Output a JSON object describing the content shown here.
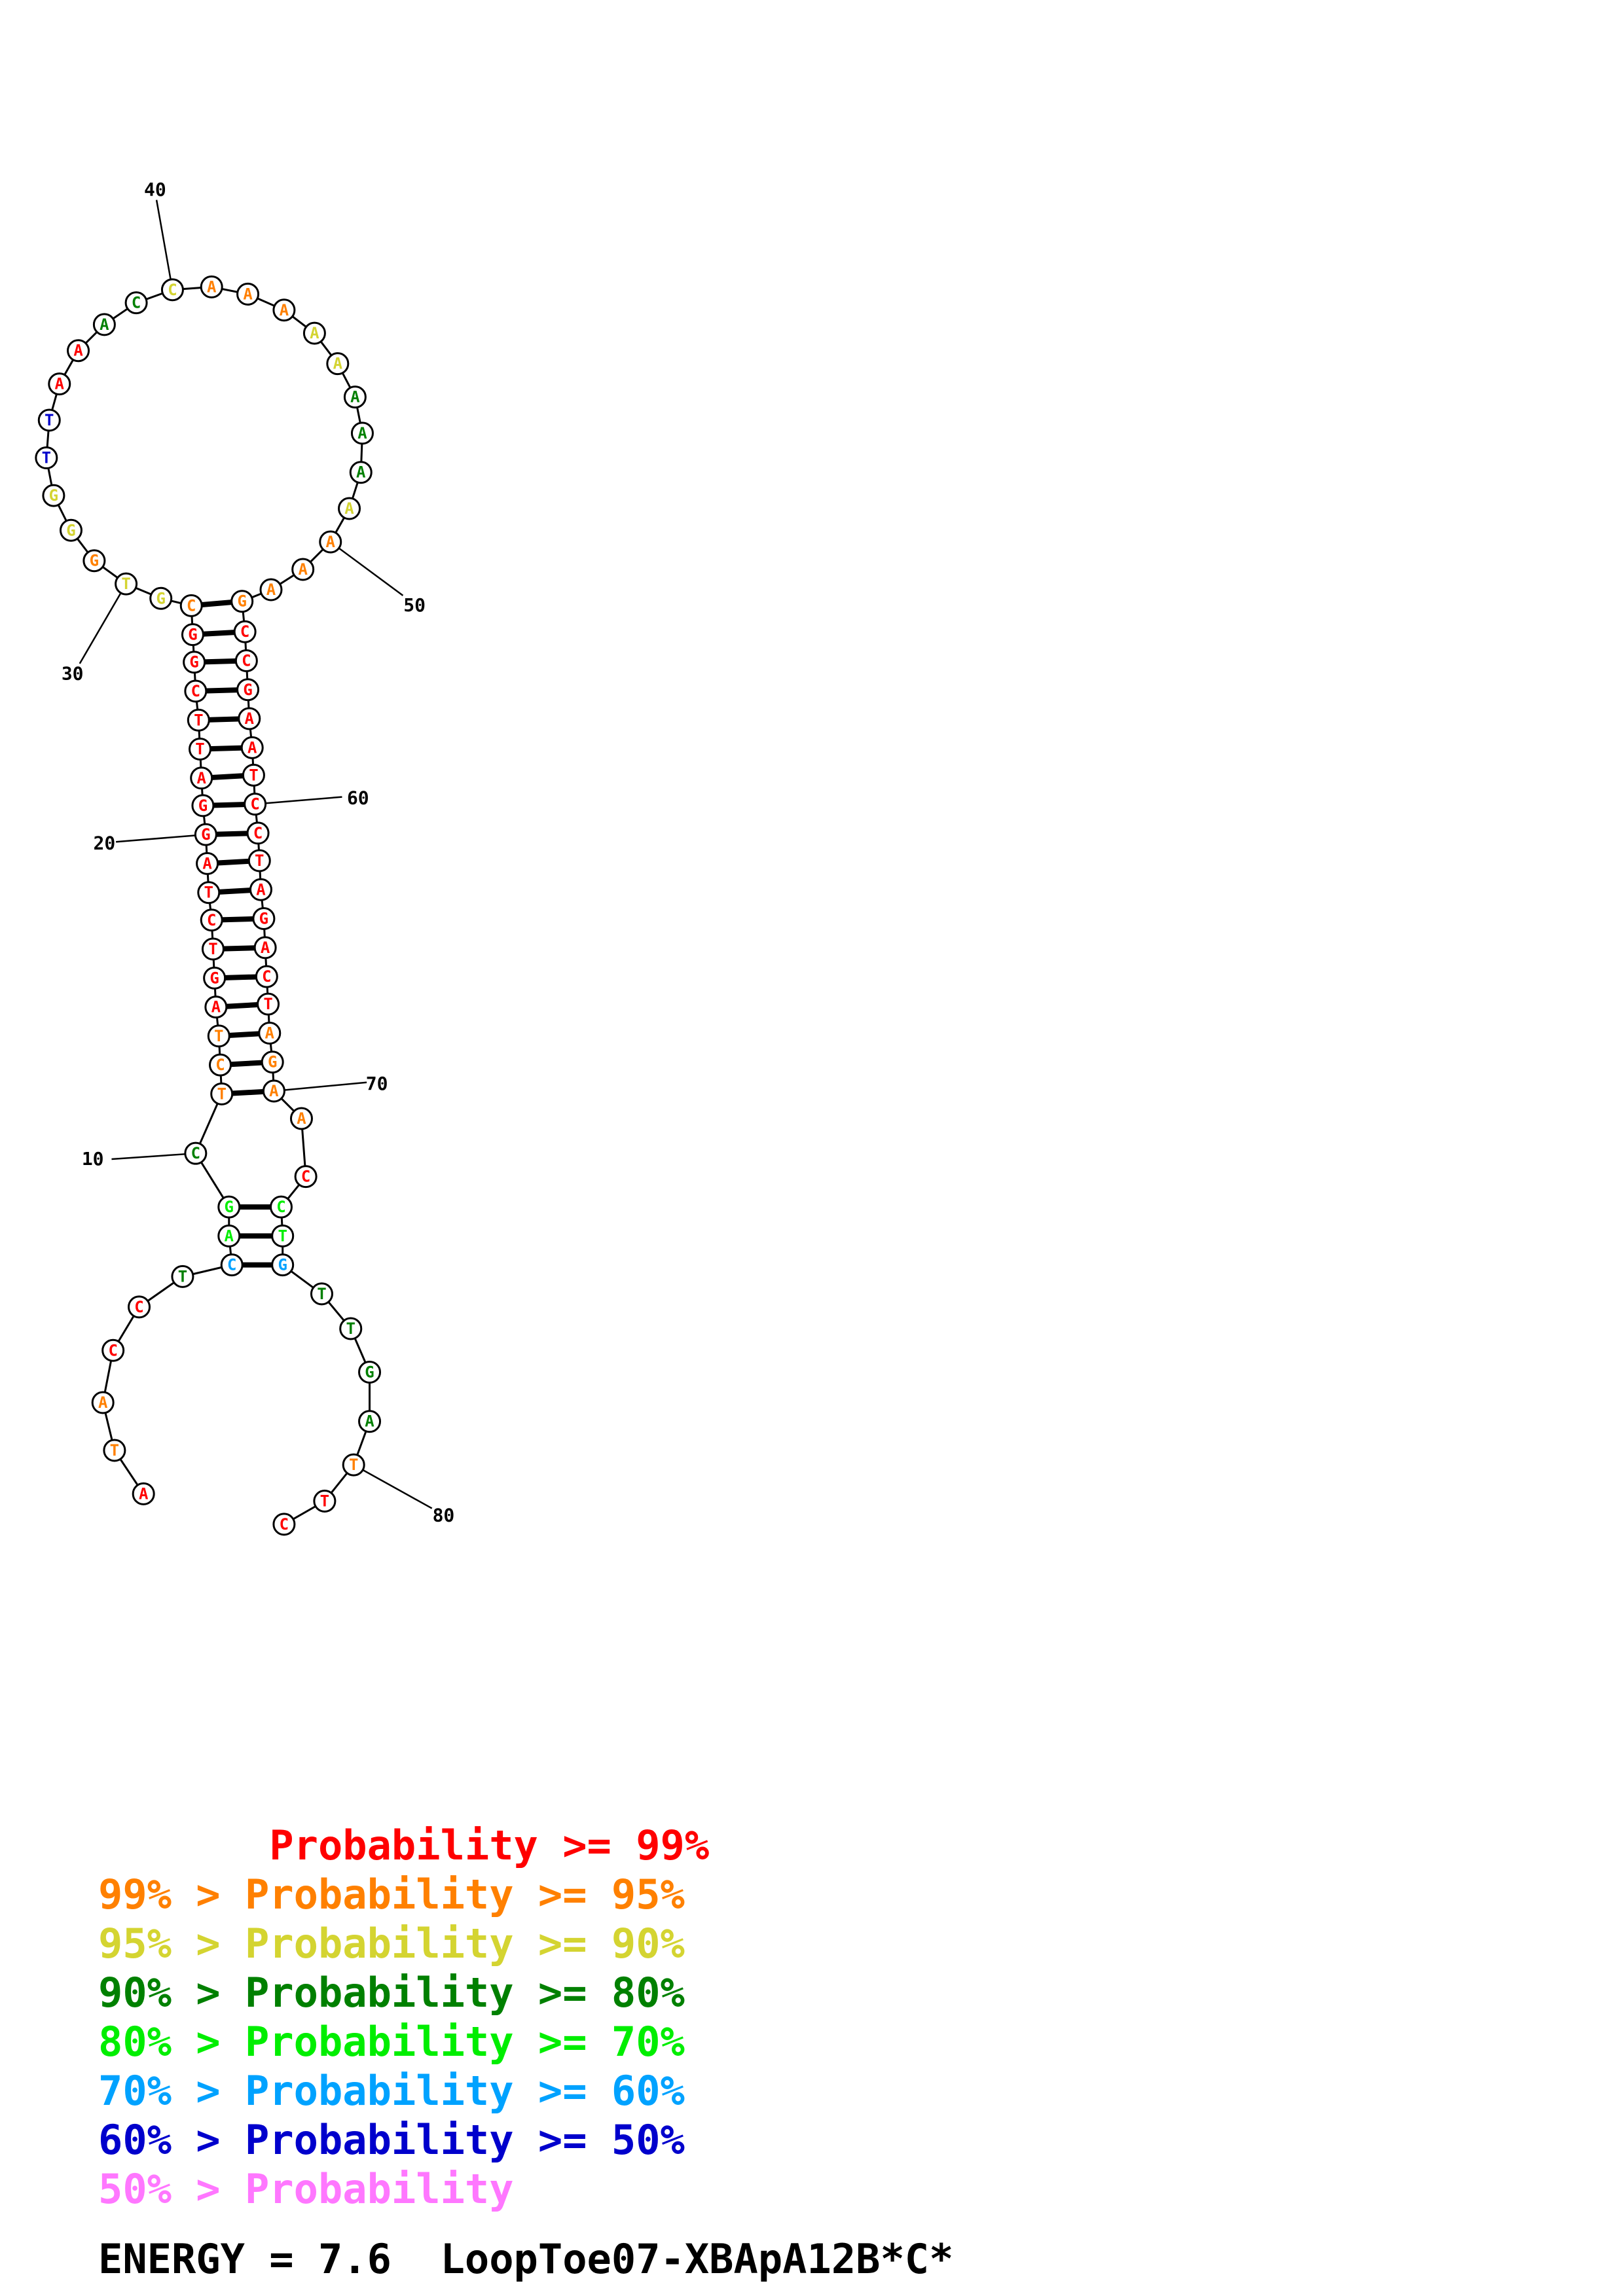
{
  "colors": {
    "p99": "#ff0000",
    "p95": "#ff8000",
    "p90": "#d4d431",
    "p80": "#008000",
    "p70": "#00ee00",
    "p60": "#00a2ff",
    "p50": "#0000cc",
    "p0": "#ff77ff"
  },
  "structure": {
    "nucleotides": [
      {
        "n": 1,
        "b": "A",
        "c": "p99"
      },
      {
        "n": 2,
        "b": "T",
        "c": "p95"
      },
      {
        "n": 3,
        "b": "A",
        "c": "p95"
      },
      {
        "n": 4,
        "b": "C",
        "c": "p99"
      },
      {
        "n": 5,
        "b": "C",
        "c": "p99"
      },
      {
        "n": 6,
        "b": "T",
        "c": "p80"
      },
      {
        "n": 7,
        "b": "C",
        "c": "p60"
      },
      {
        "n": 8,
        "b": "A",
        "c": "p70"
      },
      {
        "n": 9,
        "b": "G",
        "c": "p70"
      },
      {
        "n": 10,
        "b": "C",
        "c": "p80"
      },
      {
        "n": 11,
        "b": "T",
        "c": "p95"
      },
      {
        "n": 12,
        "b": "C",
        "c": "p95"
      },
      {
        "n": 13,
        "b": "T",
        "c": "p95"
      },
      {
        "n": 14,
        "b": "A",
        "c": "p99"
      },
      {
        "n": 15,
        "b": "G",
        "c": "p99"
      },
      {
        "n": 16,
        "b": "T",
        "c": "p99"
      },
      {
        "n": 17,
        "b": "C",
        "c": "p99"
      },
      {
        "n": 18,
        "b": "T",
        "c": "p99"
      },
      {
        "n": 19,
        "b": "A",
        "c": "p99"
      },
      {
        "n": 20,
        "b": "G",
        "c": "p99"
      },
      {
        "n": 21,
        "b": "G",
        "c": "p99"
      },
      {
        "n": 22,
        "b": "A",
        "c": "p99"
      },
      {
        "n": 23,
        "b": "T",
        "c": "p99"
      },
      {
        "n": 24,
        "b": "T",
        "c": "p99"
      },
      {
        "n": 25,
        "b": "C",
        "c": "p99"
      },
      {
        "n": 26,
        "b": "G",
        "c": "p99"
      },
      {
        "n": 27,
        "b": "G",
        "c": "p99"
      },
      {
        "n": 28,
        "b": "C",
        "c": "p95"
      },
      {
        "n": 29,
        "b": "G",
        "c": "p90"
      },
      {
        "n": 30,
        "b": "T",
        "c": "p90"
      },
      {
        "n": 31,
        "b": "G",
        "c": "p95"
      },
      {
        "n": 32,
        "b": "G",
        "c": "p90"
      },
      {
        "n": 33,
        "b": "G",
        "c": "p90"
      },
      {
        "n": 34,
        "b": "T",
        "c": "p50"
      },
      {
        "n": 35,
        "b": "T",
        "c": "p50"
      },
      {
        "n": 36,
        "b": "A",
        "c": "p99"
      },
      {
        "n": 37,
        "b": "A",
        "c": "p99"
      },
      {
        "n": 38,
        "b": "A",
        "c": "p80"
      },
      {
        "n": 39,
        "b": "C",
        "c": "p80"
      },
      {
        "n": 40,
        "b": "C",
        "c": "p90"
      },
      {
        "n": 41,
        "b": "A",
        "c": "p95"
      },
      {
        "n": 42,
        "b": "A",
        "c": "p95"
      },
      {
        "n": 43,
        "b": "A",
        "c": "p95"
      },
      {
        "n": 44,
        "b": "A",
        "c": "p90"
      },
      {
        "n": 45,
        "b": "A",
        "c": "p90"
      },
      {
        "n": 46,
        "b": "A",
        "c": "p80"
      },
      {
        "n": 47,
        "b": "A",
        "c": "p80"
      },
      {
        "n": 48,
        "b": "A",
        "c": "p80"
      },
      {
        "n": 49,
        "b": "A",
        "c": "p90"
      },
      {
        "n": 50,
        "b": "A",
        "c": "p95"
      },
      {
        "n": 51,
        "b": "A",
        "c": "p95"
      },
      {
        "n": 52,
        "b": "A",
        "c": "p95"
      },
      {
        "n": 53,
        "b": "G",
        "c": "p95"
      },
      {
        "n": 54,
        "b": "C",
        "c": "p99"
      },
      {
        "n": 55,
        "b": "C",
        "c": "p99"
      },
      {
        "n": 56,
        "b": "G",
        "c": "p99"
      },
      {
        "n": 57,
        "b": "A",
        "c": "p99"
      },
      {
        "n": 58,
        "b": "A",
        "c": "p99"
      },
      {
        "n": 59,
        "b": "T",
        "c": "p99"
      },
      {
        "n": 60,
        "b": "C",
        "c": "p99"
      },
      {
        "n": 61,
        "b": "C",
        "c": "p99"
      },
      {
        "n": 62,
        "b": "T",
        "c": "p99"
      },
      {
        "n": 63,
        "b": "A",
        "c": "p99"
      },
      {
        "n": 64,
        "b": "G",
        "c": "p99"
      },
      {
        "n": 65,
        "b": "A",
        "c": "p99"
      },
      {
        "n": 66,
        "b": "C",
        "c": "p99"
      },
      {
        "n": 67,
        "b": "T",
        "c": "p99"
      },
      {
        "n": 68,
        "b": "A",
        "c": "p95"
      },
      {
        "n": 69,
        "b": "G",
        "c": "p95"
      },
      {
        "n": 70,
        "b": "A",
        "c": "p95"
      },
      {
        "n": 71,
        "b": "A",
        "c": "p95"
      },
      {
        "n": 72,
        "b": "C",
        "c": "p99"
      },
      {
        "n": 73,
        "b": "C",
        "c": "p70"
      },
      {
        "n": 74,
        "b": "T",
        "c": "p70"
      },
      {
        "n": 75,
        "b": "G",
        "c": "p60"
      },
      {
        "n": 76,
        "b": "T",
        "c": "p80"
      },
      {
        "n": 77,
        "b": "T",
        "c": "p80"
      },
      {
        "n": 78,
        "b": "G",
        "c": "p80"
      },
      {
        "n": 79,
        "b": "A",
        "c": "p80"
      },
      {
        "n": 80,
        "b": "T",
        "c": "p95"
      },
      {
        "n": 81,
        "b": "T",
        "c": "p99"
      },
      {
        "n": 82,
        "b": "C",
        "c": "p99"
      }
    ],
    "pairs": [
      [
        7,
        75
      ],
      [
        8,
        74
      ],
      [
        9,
        73
      ],
      [
        11,
        70
      ],
      [
        12,
        69
      ],
      [
        13,
        68
      ],
      [
        14,
        67
      ],
      [
        15,
        66
      ],
      [
        16,
        65
      ],
      [
        17,
        64
      ],
      [
        18,
        63
      ],
      [
        19,
        62
      ],
      [
        20,
        61
      ],
      [
        21,
        60
      ],
      [
        22,
        59
      ],
      [
        23,
        58
      ],
      [
        24,
        57
      ],
      [
        25,
        56
      ],
      [
        26,
        55
      ],
      [
        27,
        54
      ],
      [
        28,
        53
      ]
    ],
    "position_labels": [
      {
        "n": 10,
        "text": "10"
      },
      {
        "n": 20,
        "text": "20"
      },
      {
        "n": 30,
        "text": "30"
      },
      {
        "n": 40,
        "text": "40"
      },
      {
        "n": 50,
        "text": "50"
      },
      {
        "n": 60,
        "text": "60"
      },
      {
        "n": 70,
        "text": "70"
      },
      {
        "n": 80,
        "text": "80"
      }
    ]
  },
  "legend": [
    {
      "text": "       Probability >= 99%",
      "color": "p99"
    },
    {
      "text": "99% > Probability >= 95%",
      "color": "p95"
    },
    {
      "text": "95% > Probability >= 90%",
      "color": "p90"
    },
    {
      "text": "90% > Probability >= 80%",
      "color": "p80"
    },
    {
      "text": "80% > Probability >= 70%",
      "color": "p70"
    },
    {
      "text": "70% > Probability >= 60%",
      "color": "p60"
    },
    {
      "text": "60% > Probability >= 50%",
      "color": "p50"
    },
    {
      "text": "50% > Probability",
      "color": "p0"
    }
  ],
  "energy_text": "ENERGY = 7.6  LoopToe07-XBApA12B*C*"
}
